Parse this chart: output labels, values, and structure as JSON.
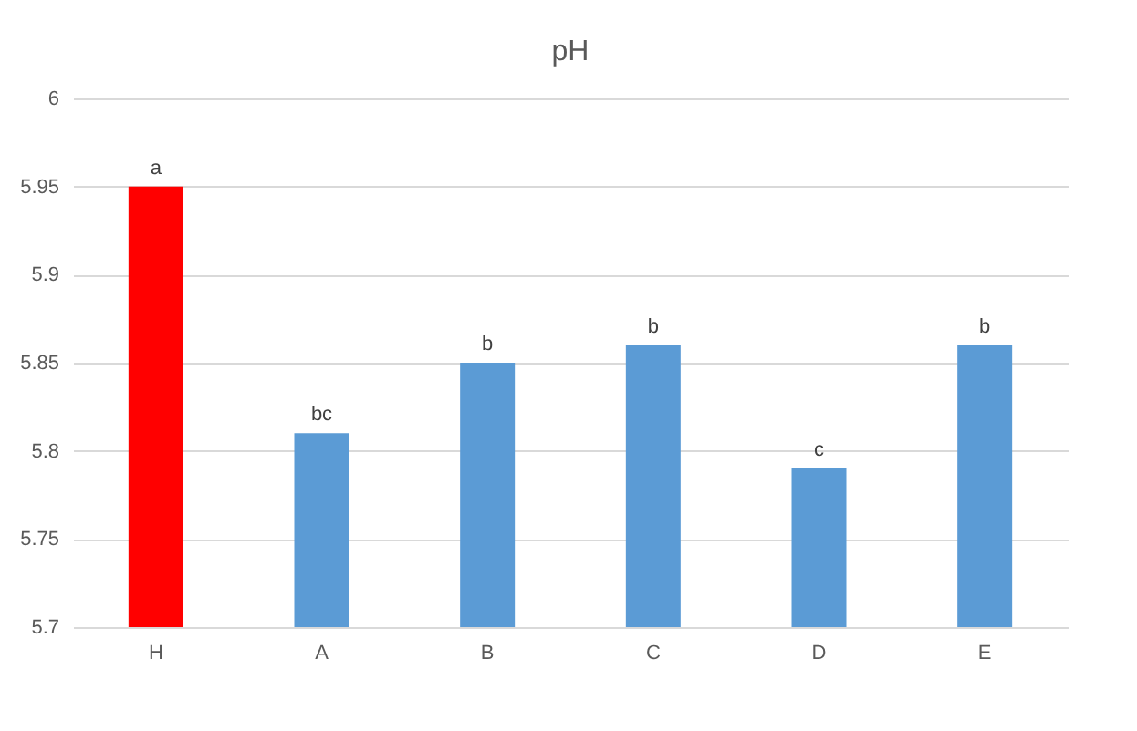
{
  "chart_data": {
    "type": "bar",
    "title": "pH",
    "categories": [
      "H",
      "A",
      "B",
      "C",
      "D",
      "E"
    ],
    "values": [
      5.95,
      5.81,
      5.85,
      5.86,
      5.79,
      5.86
    ],
    "colors": [
      "#ff0000",
      "#5b9bd5",
      "#5b9bd5",
      "#5b9bd5",
      "#5b9bd5",
      "#5b9bd5"
    ],
    "ylim": [
      5.7,
      6
    ],
    "yticks": [
      5.7,
      5.75,
      5.8,
      5.85,
      5.9,
      5.95,
      6
    ],
    "grid": "y",
    "legend": false,
    "annotations": [
      {
        "text": "a",
        "x": "H",
        "y": 5.95
      },
      {
        "text": "bc",
        "x": "A",
        "y": 5.81
      },
      {
        "text": "b",
        "x": "B",
        "y": 5.85
      },
      {
        "text": "b",
        "x": "C",
        "y": 5.86
      },
      {
        "text": "c",
        "x": "D",
        "y": 5.79
      },
      {
        "text": "b",
        "x": "E",
        "y": 5.86
      }
    ]
  }
}
